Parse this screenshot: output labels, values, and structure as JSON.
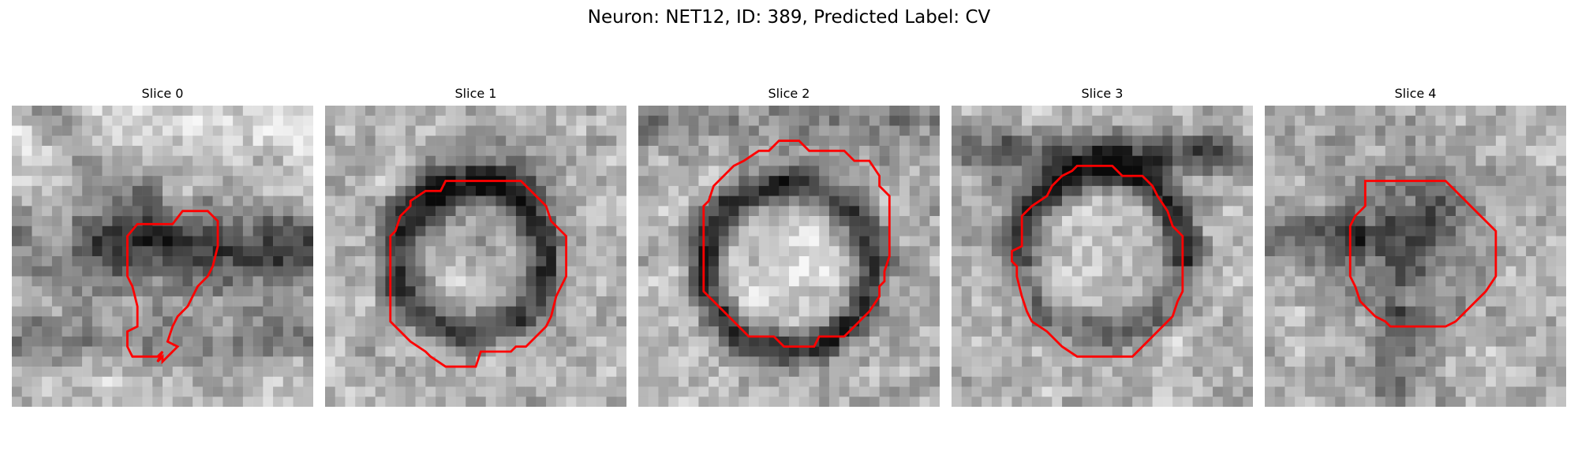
{
  "figure": {
    "title": "Neuron: NET12, ID: 389, Predicted Label: CV"
  },
  "colors": {
    "contour": "#ff0000",
    "background": "#ffffff"
  },
  "panels": [
    {
      "label": "Slice 0"
    },
    {
      "label": "Slice 1"
    },
    {
      "label": "Slice 2"
    },
    {
      "label": "Slice 3"
    },
    {
      "label": "Slice 4"
    }
  ]
}
